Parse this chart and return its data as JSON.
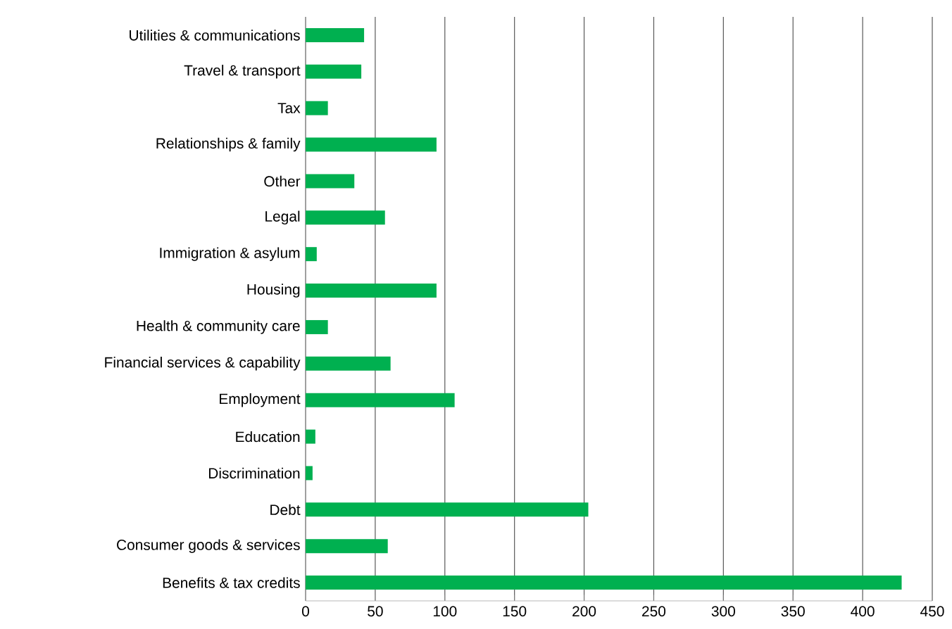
{
  "chart_data": {
    "type": "bar",
    "orientation": "horizontal",
    "categories": [
      "Utilities & communications",
      "Travel & transport",
      "Tax",
      "Relationships & family",
      "Other",
      "Legal",
      "Immigration & asylum",
      "Housing",
      "Health & community care",
      "Financial services & capability",
      "Employment",
      "Education",
      "Discrimination",
      "Debt",
      "Consumer goods & services",
      "Benefits & tax credits"
    ],
    "values": [
      42,
      40,
      16,
      94,
      35,
      57,
      8,
      94,
      16,
      61,
      107,
      7,
      5,
      203,
      59,
      428
    ],
    "color": "#00b050",
    "xlim": [
      0,
      450
    ],
    "xticks": [
      0,
      50,
      100,
      150,
      200,
      250,
      300,
      350,
      400,
      450
    ],
    "grid": "x"
  }
}
